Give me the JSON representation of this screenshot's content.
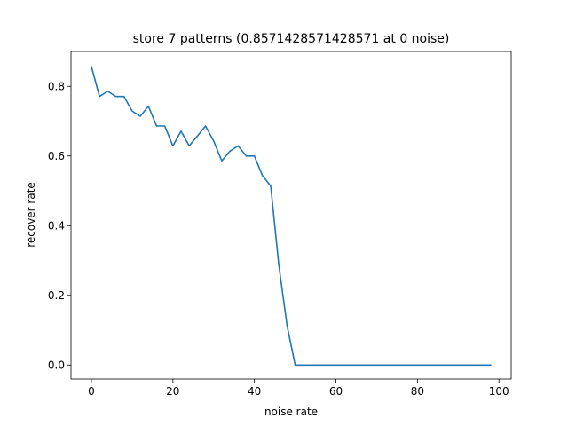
{
  "chart_data": {
    "type": "line",
    "title": "store 7 patterns (0.8571428571428571 at 0 noise)",
    "xlabel": "noise rate",
    "ylabel": "recover rate",
    "xlim": [
      -5,
      103
    ],
    "ylim": [
      -0.04,
      0.9
    ],
    "xticks": [
      0,
      20,
      40,
      60,
      80,
      100
    ],
    "xtick_labels": [
      "0",
      "20",
      "40",
      "60",
      "80",
      "100"
    ],
    "yticks": [
      0.0,
      0.2,
      0.4,
      0.6,
      0.8
    ],
    "ytick_labels": [
      "0.0",
      "0.2",
      "0.4",
      "0.6",
      "0.8"
    ],
    "grid": false,
    "colors": {
      "line": "#1f77b4"
    },
    "x": [
      0,
      2,
      4,
      6,
      8,
      10,
      12,
      14,
      16,
      18,
      20,
      22,
      24,
      26,
      28,
      30,
      32,
      34,
      36,
      38,
      40,
      42,
      44,
      46,
      48,
      50,
      52,
      54,
      56,
      58,
      60,
      62,
      64,
      66,
      68,
      70,
      72,
      74,
      76,
      78,
      80,
      82,
      84,
      86,
      88,
      90,
      92,
      94,
      96,
      98
    ],
    "series": [
      {
        "values": [
          0.857,
          0.771,
          0.786,
          0.771,
          0.771,
          0.729,
          0.714,
          0.743,
          0.686,
          0.686,
          0.629,
          0.671,
          0.629,
          0.657,
          0.686,
          0.643,
          0.586,
          0.614,
          0.629,
          0.6,
          0.6,
          0.543,
          0.514,
          0.286,
          0.114,
          0.0,
          0.0,
          0.0,
          0.0,
          0.0,
          0.0,
          0.0,
          0.0,
          0.0,
          0.0,
          0.0,
          0.0,
          0.0,
          0.0,
          0.0,
          0.0,
          0.0,
          0.0,
          0.0,
          0.0,
          0.0,
          0.0,
          0.0,
          0.0,
          0.0
        ]
      }
    ]
  }
}
